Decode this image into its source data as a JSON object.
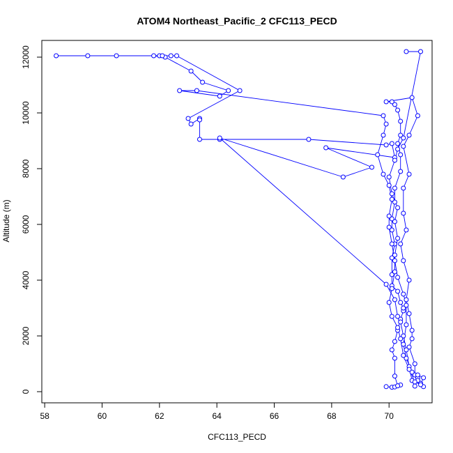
{
  "chart_data": {
    "type": "scatter",
    "title": "ATOM4 Northeast_Pacific_2 CFC113_PECD",
    "xlabel": "CFC113_PECD",
    "ylabel": "Altitude (m)",
    "xlim": [
      57.9,
      71.5
    ],
    "ylim": [
      -400,
      12600
    ],
    "xticks": [
      58,
      60,
      62,
      64,
      66,
      68,
      70
    ],
    "yticks": [
      0,
      2000,
      4000,
      6000,
      8000,
      10000,
      12000
    ],
    "grid": false,
    "legend": "none",
    "colors": {
      "series": "#0000ff",
      "axis": "#000000",
      "background": "#ffffff"
    },
    "series": [
      {
        "style": "points-and-lines",
        "points": [
          [
            69.9,
            180
          ],
          [
            70.1,
            160
          ],
          [
            70.2,
            170
          ],
          [
            70.4,
            240
          ],
          [
            70.3,
            210
          ],
          [
            70.2,
            560
          ],
          [
            70.2,
            1200
          ],
          [
            70.1,
            1500
          ],
          [
            70.2,
            1800
          ],
          [
            70.3,
            2200
          ],
          [
            70.4,
            2600
          ],
          [
            70.5,
            2900
          ],
          [
            70.5,
            3000
          ],
          [
            70.4,
            3200
          ],
          [
            70.3,
            3600
          ],
          [
            70.1,
            3800
          ],
          [
            70.1,
            4200
          ],
          [
            70.1,
            4800
          ],
          [
            70.2,
            5300
          ],
          [
            70.1,
            5800
          ],
          [
            70.1,
            6200
          ],
          [
            70.2,
            6800
          ],
          [
            70.2,
            7300
          ],
          [
            70.4,
            7900
          ],
          [
            70.4,
            8500
          ],
          [
            70.3,
            8900
          ],
          [
            70.4,
            9200
          ],
          [
            70.4,
            9700
          ],
          [
            70.3,
            10100
          ],
          [
            70.2,
            10300
          ],
          [
            70.1,
            10400
          ],
          [
            69.9,
            10400
          ],
          [
            70.8,
            10550
          ],
          [
            71.0,
            9900
          ],
          [
            70.7,
            9200
          ],
          [
            70.5,
            8800
          ],
          [
            70.7,
            7800
          ],
          [
            70.5,
            7300
          ],
          [
            70.5,
            6400
          ],
          [
            70.6,
            5800
          ],
          [
            70.4,
            5300
          ],
          [
            70.5,
            4700
          ],
          [
            70.7,
            4000
          ],
          [
            70.6,
            3300
          ],
          [
            70.7,
            2800
          ],
          [
            70.8,
            2200
          ],
          [
            70.8,
            1900
          ],
          [
            70.7,
            1600
          ],
          [
            70.9,
            1000
          ],
          [
            70.9,
            600
          ],
          [
            71.0,
            500
          ],
          [
            71.1,
            300
          ],
          [
            71.2,
            180
          ],
          [
            71.0,
            400
          ],
          [
            70.8,
            700
          ],
          [
            70.6,
            1200
          ],
          [
            70.5,
            1700
          ],
          [
            70.6,
            2400
          ],
          [
            70.6,
            3100
          ],
          [
            70.5,
            3500
          ],
          [
            70.3,
            4100
          ],
          [
            70.2,
            4700
          ],
          [
            70.1,
            5300
          ],
          [
            70.0,
            5900
          ],
          [
            70.0,
            6300
          ],
          [
            70.1,
            6900
          ],
          [
            70.0,
            7400
          ],
          [
            69.8,
            7800
          ],
          [
            69.6,
            8500
          ],
          [
            69.8,
            9200
          ],
          [
            69.9,
            9600
          ],
          [
            69.8,
            9900
          ],
          [
            63.3,
            10800
          ],
          [
            62.7,
            10800
          ],
          [
            64.1,
            10600
          ],
          [
            64.4,
            10800
          ],
          [
            63.5,
            11100
          ],
          [
            63.1,
            11500
          ],
          [
            62.2,
            12000
          ],
          [
            61.8,
            12050
          ],
          [
            60.5,
            12050
          ],
          [
            59.5,
            12050
          ],
          [
            58.4,
            12050
          ],
          [
            62.0,
            12050
          ],
          [
            62.1,
            12050
          ],
          [
            62.4,
            12050
          ],
          [
            62.6,
            12050
          ],
          [
            64.8,
            10800
          ],
          [
            63.0,
            9800
          ],
          [
            63.1,
            9600
          ],
          [
            63.4,
            9800
          ],
          [
            63.4,
            9750
          ],
          [
            63.4,
            9050
          ],
          [
            64.1,
            9050
          ],
          [
            67.2,
            9050
          ],
          [
            69.9,
            8850
          ],
          [
            70.1,
            8900
          ],
          [
            70.2,
            8400
          ],
          [
            67.8,
            8750
          ],
          [
            69.4,
            8050
          ],
          [
            68.4,
            7700
          ],
          [
            64.1,
            9100
          ],
          [
            69.9,
            3850
          ],
          [
            70.2,
            3300
          ],
          [
            70.3,
            2700
          ],
          [
            70.4,
            2500
          ],
          [
            70.5,
            2000
          ],
          [
            70.6,
            1500
          ],
          [
            70.7,
            900
          ],
          [
            70.8,
            400
          ],
          [
            70.9,
            200
          ],
          [
            71.0,
            600
          ],
          [
            71.2,
            500
          ],
          [
            71.1,
            250
          ],
          [
            70.9,
            350
          ],
          [
            70.7,
            800
          ],
          [
            70.5,
            1300
          ],
          [
            70.4,
            1900
          ],
          [
            70.3,
            2300
          ],
          [
            70.1,
            2700
          ],
          [
            70.0,
            3200
          ],
          [
            70.1,
            3700
          ],
          [
            70.2,
            4300
          ],
          [
            70.2,
            4900
          ],
          [
            70.3,
            5500
          ],
          [
            70.2,
            6100
          ],
          [
            70.3,
            6600
          ],
          [
            70.1,
            7100
          ],
          [
            70.0,
            7700
          ],
          [
            70.2,
            8300
          ],
          [
            70.3,
            8700
          ],
          [
            70.5,
            9100
          ],
          [
            71.1,
            12200
          ],
          [
            70.6,
            12200
          ]
        ]
      }
    ]
  }
}
